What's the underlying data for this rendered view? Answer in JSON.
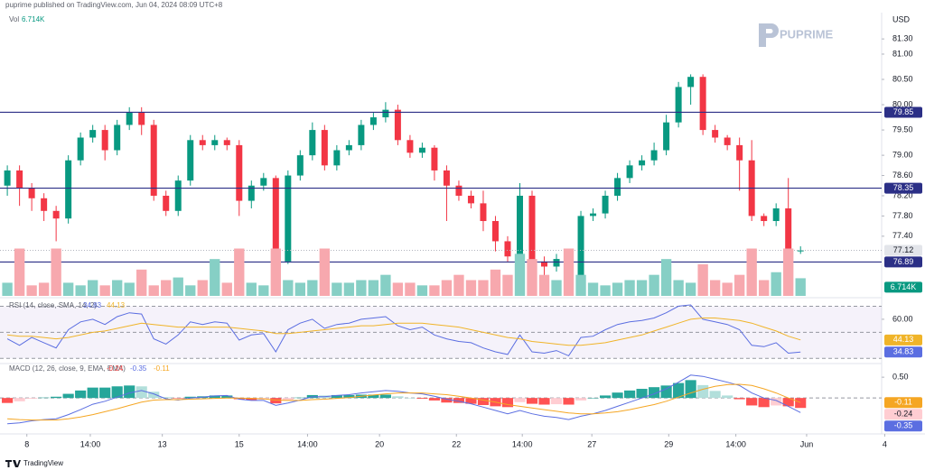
{
  "header": {
    "text": "puprime published on TradingView.com, Jun 04, 2024 08:09 UTC+8"
  },
  "logo": "PUPRIME",
  "footer": "TradingView",
  "chart_data": [
    {
      "type": "candlestick",
      "currency": "USD",
      "xlim": [
        -0.6,
        75.2
      ],
      "xticks": [
        {
          "value": 1.6,
          "label": "8"
        },
        {
          "value": 6.8,
          "label": "14:00"
        },
        {
          "value": 12.7,
          "label": "13"
        },
        {
          "value": 19.0,
          "label": "15"
        },
        {
          "value": 24.6,
          "label": "14:00"
        },
        {
          "value": 30.5,
          "label": "20"
        },
        {
          "value": 36.8,
          "label": "22"
        },
        {
          "value": 42.2,
          "label": "14:00"
        },
        {
          "value": 47.9,
          "label": "27"
        },
        {
          "value": 54.2,
          "label": "29"
        },
        {
          "value": 59.7,
          "label": "14:00"
        },
        {
          "value": 65.5,
          "label": "Jun"
        },
        {
          "value": 71.9,
          "label": "4"
        }
      ],
      "ylim": [
        76.22,
        81.82
      ],
      "yticks": [
        {
          "value": 81.3,
          "label": "81.30"
        },
        {
          "value": 81,
          "label": "81.00"
        },
        {
          "value": 80.5,
          "label": "80.50"
        },
        {
          "value": 80,
          "label": "80.00"
        },
        {
          "value": 79.5,
          "label": "79.50"
        },
        {
          "value": 79,
          "label": "79.00"
        },
        {
          "value": 78.6,
          "label": "78.60"
        },
        {
          "value": 78.2,
          "label": "78.20"
        },
        {
          "value": 77.8,
          "label": "77.80"
        },
        {
          "value": 77.4,
          "label": "77.40"
        }
      ],
      "open": [
        78.4,
        78.7,
        78.35,
        78.15,
        77.9,
        77.75,
        78.9,
        79.35,
        79.5,
        79.1,
        79.6,
        79.85,
        79.6,
        78.2,
        77.9,
        78.5,
        79.3,
        79.2,
        79.3,
        79.2,
        78.1,
        78.4,
        78.55,
        76.9,
        78.6,
        79.0,
        79.5,
        78.8,
        79.1,
        79.2,
        79.6,
        79.75,
        79.9,
        79.3,
        79.05,
        79.15,
        78.7,
        78.4,
        78.2,
        78.05,
        77.7,
        77.3,
        77.0,
        78.2,
        76.9,
        76.8,
        76.95,
        76.4,
        77.8,
        77.85,
        78.2,
        78.55,
        78.8,
        78.9,
        79.1,
        79.65,
        80.35,
        80.55,
        79.5,
        79.35,
        79.2,
        78.9,
        77.8,
        77.7,
        77.95,
        77.1
      ],
      "high": [
        78.8,
        78.8,
        78.45,
        78.25,
        78.0,
        79.0,
        79.45,
        79.6,
        79.6,
        79.7,
        79.95,
        79.95,
        79.7,
        78.3,
        78.6,
        79.4,
        79.4,
        79.4,
        79.35,
        79.3,
        78.5,
        78.65,
        78.6,
        78.7,
        79.1,
        79.65,
        79.6,
        79.2,
        79.3,
        79.7,
        79.85,
        80.05,
        80.0,
        79.4,
        79.25,
        79.2,
        78.8,
        78.5,
        78.3,
        78.3,
        77.8,
        77.4,
        78.45,
        78.3,
        77.0,
        77.05,
        77.0,
        77.9,
        77.95,
        78.3,
        78.65,
        78.9,
        79.0,
        79.25,
        79.8,
        80.45,
        80.6,
        80.6,
        79.6,
        79.4,
        79.35,
        79.3,
        77.85,
        78.05,
        78.55,
        77.2
      ],
      "low": [
        78.2,
        78.0,
        77.9,
        77.7,
        77.3,
        77.65,
        78.8,
        79.25,
        78.9,
        79.0,
        79.5,
        79.4,
        78.1,
        77.8,
        77.8,
        78.4,
        79.1,
        79.1,
        79.1,
        77.8,
        77.95,
        78.3,
        76.8,
        76.85,
        78.5,
        78.9,
        78.7,
        78.7,
        79.0,
        79.1,
        79.5,
        79.65,
        79.2,
        78.95,
        78.95,
        78.5,
        77.7,
        78.1,
        77.95,
        77.5,
        77.1,
        76.9,
        76.95,
        76.7,
        76.6,
        76.7,
        76.3,
        76.35,
        77.7,
        77.75,
        78.1,
        78.45,
        78.7,
        78.8,
        79.0,
        79.55,
        80.0,
        79.4,
        79.25,
        79.1,
        78.3,
        77.7,
        77.6,
        77.6,
        77.0,
        77.05
      ],
      "close": [
        78.7,
        78.35,
        78.15,
        77.9,
        77.75,
        78.9,
        79.35,
        79.5,
        79.1,
        79.6,
        79.85,
        79.6,
        78.2,
        77.9,
        78.5,
        79.3,
        79.2,
        79.3,
        79.2,
        78.1,
        78.4,
        78.55,
        76.9,
        78.6,
        79.0,
        79.5,
        78.8,
        79.1,
        79.2,
        79.6,
        79.75,
        79.9,
        79.3,
        79.05,
        79.15,
        78.7,
        78.4,
        78.2,
        78.05,
        77.7,
        77.3,
        77.0,
        78.2,
        76.9,
        76.8,
        76.95,
        76.4,
        77.8,
        77.85,
        78.2,
        78.55,
        78.8,
        78.9,
        79.1,
        79.65,
        80.35,
        80.55,
        79.5,
        79.35,
        79.2,
        78.9,
        77.8,
        77.7,
        77.95,
        77.1,
        77.12
      ],
      "up_color": "#089981",
      "down_color": "#f23645",
      "levels": [
        79.85,
        78.35,
        76.89
      ],
      "level_color": "#2b2f86",
      "last_price": 77.12
    },
    {
      "type": "volume",
      "name": "Vol",
      "values": [
        5,
        18,
        4,
        5,
        18,
        5,
        4,
        6,
        4,
        6,
        5,
        10,
        4,
        6,
        7,
        4,
        6,
        14,
        5,
        18,
        5,
        4,
        18,
        6,
        5,
        6,
        18,
        5,
        5,
        6,
        6,
        8,
        5,
        5,
        4,
        4,
        6,
        8,
        6,
        6,
        10,
        8,
        16,
        14,
        8,
        6,
        18,
        8,
        5,
        4,
        5,
        6,
        6,
        8,
        14,
        6,
        5,
        12,
        6,
        5,
        8,
        18,
        6,
        9,
        18,
        6.714
      ],
      "last_value_label": "6.714K",
      "ylim": [
        0,
        24
      ],
      "up_color": "#86cfc5",
      "down_color": "#f7a8ae"
    },
    {
      "type": "line",
      "title": "RSI (14, close, SMA, 14, 2)",
      "ylim": [
        29.5,
        71
      ],
      "yticks": [
        {
          "value": 60,
          "label": "60.00"
        }
      ],
      "levels": [
        70,
        50,
        30
      ],
      "band_color": "#7e57c2",
      "series": [
        {
          "color": "#5b6ee1",
          "values": [
            45,
            40,
            46,
            42,
            38,
            52,
            58,
            60,
            56,
            62,
            65,
            64,
            45,
            41,
            48,
            58,
            56,
            58,
            57,
            44,
            48,
            49,
            35,
            52,
            57,
            60,
            53,
            56,
            57,
            60,
            61,
            62,
            55,
            52,
            54,
            48,
            45,
            43,
            42,
            38,
            35,
            33,
            48,
            35,
            34,
            36,
            32,
            46,
            47,
            52,
            56,
            58,
            59,
            61,
            65,
            70,
            71,
            60,
            58,
            56,
            52,
            40,
            39,
            42,
            34,
            34.83
          ]
        },
        {
          "color": "#f0b429",
          "values": [
            48,
            47,
            47,
            46,
            45,
            46,
            48,
            50,
            51,
            53,
            55,
            57,
            56,
            55,
            54,
            54,
            54,
            54,
            54,
            53,
            52,
            51,
            49,
            49,
            50,
            51,
            52,
            53,
            54,
            55,
            55,
            56,
            57,
            57,
            57,
            56,
            55,
            54,
            52,
            50,
            48,
            46,
            45,
            43,
            42,
            41,
            40,
            40,
            41,
            42,
            44,
            46,
            48,
            51,
            54,
            57,
            60,
            61,
            61,
            60,
            59,
            57,
            54,
            51,
            47,
            44.13
          ]
        }
      ]
    },
    {
      "type": "macd",
      "title": "MACD (12, 26, close, 9, EMA, EMA)",
      "ylim": [
        -0.8,
        0.72
      ],
      "yticks": [
        {
          "value": 0.5,
          "label": "0.50"
        }
      ],
      "levels": [
        0
      ],
      "histogram": {
        "values": [
          -0.12,
          -0.08,
          -0.02,
          0.01,
          0.03,
          0.1,
          0.18,
          0.25,
          0.25,
          0.28,
          0.3,
          0.28,
          0.15,
          0.02,
          -0.01,
          0.03,
          0.04,
          0.06,
          0.06,
          -0.03,
          -0.05,
          -0.04,
          -0.13,
          -0.06,
          0.01,
          0.07,
          0.06,
          0.07,
          0.07,
          0.08,
          0.08,
          0.08,
          0.04,
          0.0,
          -0.02,
          -0.06,
          -0.11,
          -0.12,
          -0.14,
          -0.17,
          -0.2,
          -0.22,
          -0.1,
          -0.14,
          -0.16,
          -0.15,
          -0.16,
          -0.06,
          0.0,
          0.06,
          0.13,
          0.18,
          0.22,
          0.26,
          0.3,
          0.36,
          0.43,
          0.31,
          0.17,
          0.06,
          -0.03,
          -0.18,
          -0.22,
          -0.18,
          -0.2,
          -0.24
        ],
        "colors": {
          "pos_up": "#26a69a",
          "pos_down": "#b2dfdb",
          "neg_up": "#ffcdd2",
          "neg_down": "#ff5252"
        }
      },
      "series": [
        {
          "color": "#5b6ee1",
          "values": [
            -0.62,
            -0.6,
            -0.55,
            -0.52,
            -0.5,
            -0.4,
            -0.28,
            -0.15,
            -0.08,
            0.02,
            0.12,
            0.18,
            0.1,
            -0.02,
            -0.05,
            0.0,
            0.02,
            0.05,
            0.06,
            -0.03,
            -0.06,
            -0.06,
            -0.18,
            -0.12,
            -0.05,
            0.03,
            0.03,
            0.06,
            0.08,
            0.12,
            0.15,
            0.18,
            0.16,
            0.12,
            0.1,
            0.04,
            -0.03,
            -0.08,
            -0.14,
            -0.22,
            -0.3,
            -0.38,
            -0.3,
            -0.38,
            -0.44,
            -0.47,
            -0.52,
            -0.44,
            -0.38,
            -0.3,
            -0.2,
            -0.1,
            0.0,
            0.1,
            0.22,
            0.38,
            0.55,
            0.52,
            0.45,
            0.38,
            0.3,
            0.12,
            0.0,
            -0.06,
            -0.2,
            -0.35
          ]
        },
        {
          "color": "#f5a623",
          "values": [
            -0.5,
            -0.52,
            -0.53,
            -0.53,
            -0.53,
            -0.5,
            -0.46,
            -0.4,
            -0.33,
            -0.26,
            -0.18,
            -0.1,
            -0.05,
            -0.04,
            -0.04,
            -0.03,
            -0.02,
            -0.01,
            0.0,
            0.0,
            -0.01,
            -0.02,
            -0.05,
            -0.06,
            -0.06,
            -0.04,
            -0.03,
            -0.01,
            0.01,
            0.04,
            0.07,
            0.1,
            0.12,
            0.12,
            0.12,
            0.1,
            0.08,
            0.04,
            0.0,
            -0.05,
            -0.1,
            -0.16,
            -0.2,
            -0.24,
            -0.28,
            -0.32,
            -0.36,
            -0.38,
            -0.38,
            -0.36,
            -0.33,
            -0.28,
            -0.22,
            -0.16,
            -0.08,
            0.02,
            0.12,
            0.21,
            0.28,
            0.32,
            0.33,
            0.3,
            0.22,
            0.12,
            0.0,
            -0.11
          ]
        }
      ]
    }
  ]
}
